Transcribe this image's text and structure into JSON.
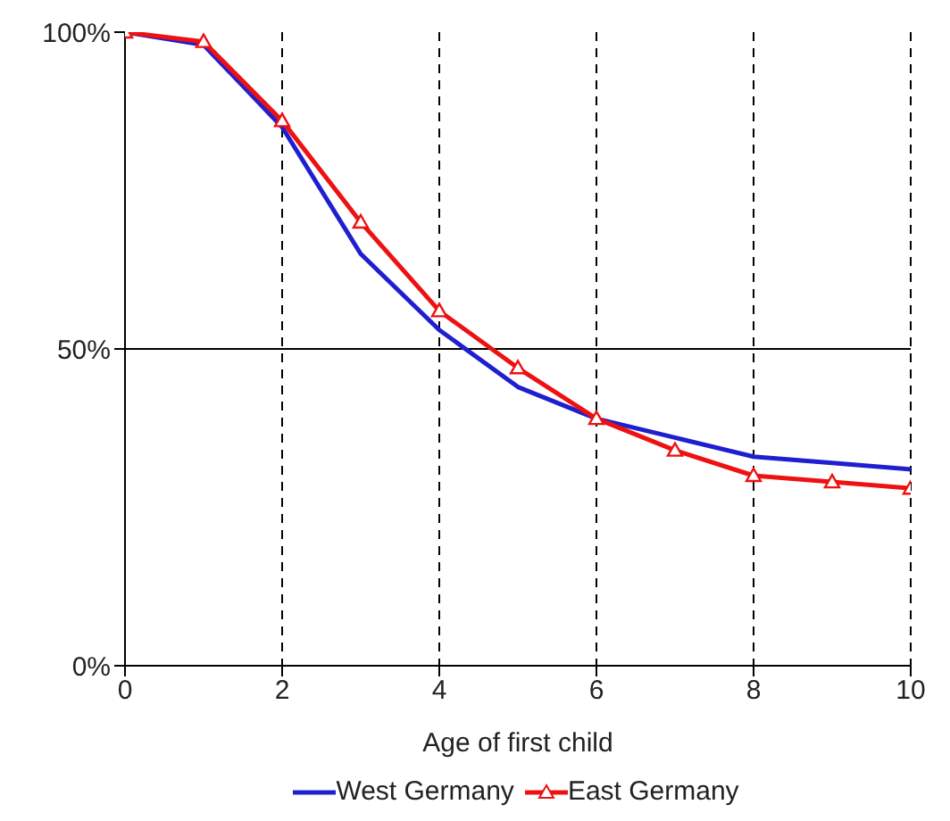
{
  "chart_data": {
    "type": "line",
    "xlabel": "Age of first child",
    "x": [
      0,
      1,
      2,
      3,
      4,
      5,
      6,
      7,
      8,
      9,
      10
    ],
    "xlim": [
      0,
      10
    ],
    "xticks": [
      0,
      2,
      4,
      6,
      8,
      10
    ],
    "ylim": [
      0,
      100
    ],
    "yticks": [
      {
        "value": 0,
        "label": "0%"
      },
      {
        "value": 50,
        "label": "50%"
      },
      {
        "value": 100,
        "label": "100%"
      }
    ],
    "grid": "x",
    "ref_lines": [
      {
        "axis": "y",
        "value": 50,
        "color": "#000000",
        "line_style": "solid"
      }
    ],
    "legend": "bottom",
    "series": [
      {
        "name": "West Germany",
        "color": "#1f1fd0",
        "marker": "none",
        "values": [
          100,
          98,
          85,
          65,
          53,
          44,
          39,
          36,
          33,
          32,
          31
        ]
      },
      {
        "name": "East Germany",
        "color": "#ee1111",
        "marker": "triangle",
        "values": [
          100,
          98.5,
          86,
          70,
          56,
          47,
          39,
          34,
          30,
          29,
          28
        ]
      }
    ]
  }
}
